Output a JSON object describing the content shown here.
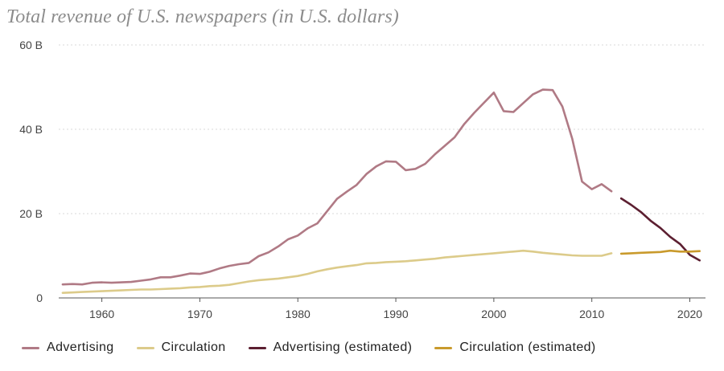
{
  "chart_data": {
    "type": "line",
    "title": "Total revenue of U.S. newspapers (in U.S. dollars)",
    "xlabel": "",
    "ylabel": "",
    "xlim": [
      1955.6,
      2021.6
    ],
    "ylim": [
      0,
      60
    ],
    "x_ticks": [
      {
        "value": 1960,
        "label": "1960"
      },
      {
        "value": 1970,
        "label": "1970"
      },
      {
        "value": 1980,
        "label": "1980"
      },
      {
        "value": 1990,
        "label": "1990"
      },
      {
        "value": 2000,
        "label": "2000"
      },
      {
        "value": 2010,
        "label": "2010"
      },
      {
        "value": 2020,
        "label": "2020"
      }
    ],
    "y_ticks": [
      {
        "value": 0,
        "label": "0"
      },
      {
        "value": 20,
        "label": "20 B"
      },
      {
        "value": 40,
        "label": "40 B"
      },
      {
        "value": 60,
        "label": "60 B"
      }
    ],
    "grid": true,
    "legend_position": "bottom",
    "series": [
      {
        "name": "Advertising",
        "color": "#b07a85",
        "x": [
          1956,
          1957,
          1958,
          1959,
          1960,
          1961,
          1962,
          1963,
          1964,
          1965,
          1966,
          1967,
          1968,
          1969,
          1970,
          1971,
          1972,
          1973,
          1974,
          1975,
          1976,
          1977,
          1978,
          1979,
          1980,
          1981,
          1982,
          1983,
          1984,
          1985,
          1986,
          1987,
          1988,
          1989,
          1990,
          1991,
          1992,
          1993,
          1994,
          1995,
          1996,
          1997,
          1998,
          1999,
          2000,
          2001,
          2002,
          2003,
          2004,
          2005,
          2006,
          2007,
          2008,
          2009,
          2010,
          2011,
          2012
        ],
        "values": [
          3.2,
          3.3,
          3.2,
          3.6,
          3.7,
          3.6,
          3.7,
          3.8,
          4.1,
          4.4,
          4.9,
          4.9,
          5.3,
          5.8,
          5.7,
          6.2,
          7.0,
          7.6,
          8.0,
          8.3,
          9.9,
          10.8,
          12.2,
          13.9,
          14.8,
          16.5,
          17.7,
          20.6,
          23.5,
          25.2,
          26.8,
          29.4,
          31.2,
          32.4,
          32.3,
          30.3,
          30.6,
          31.8,
          34.1,
          36.1,
          38.1,
          41.3,
          43.9,
          46.3,
          48.7,
          44.3,
          44.1,
          46.2,
          48.3,
          49.4,
          49.3,
          45.4,
          37.8,
          27.6,
          25.8,
          27.0,
          25.3
        ]
      },
      {
        "name": "Circulation",
        "color": "#dccb8a",
        "x": [
          1956,
          1957,
          1958,
          1959,
          1960,
          1961,
          1962,
          1963,
          1964,
          1965,
          1966,
          1967,
          1968,
          1969,
          1970,
          1971,
          1972,
          1973,
          1974,
          1975,
          1976,
          1977,
          1978,
          1979,
          1980,
          1981,
          1982,
          1983,
          1984,
          1985,
          1986,
          1987,
          1988,
          1989,
          1990,
          1991,
          1992,
          1993,
          1994,
          1995,
          1996,
          1997,
          1998,
          1999,
          2000,
          2001,
          2002,
          2003,
          2004,
          2005,
          2006,
          2007,
          2008,
          2009,
          2010,
          2011,
          2012
        ],
        "values": [
          1.2,
          1.3,
          1.4,
          1.5,
          1.6,
          1.7,
          1.8,
          1.9,
          2.0,
          2.0,
          2.1,
          2.2,
          2.3,
          2.5,
          2.6,
          2.8,
          2.9,
          3.1,
          3.5,
          3.9,
          4.2,
          4.4,
          4.6,
          4.9,
          5.2,
          5.7,
          6.3,
          6.8,
          7.2,
          7.5,
          7.8,
          8.2,
          8.3,
          8.5,
          8.6,
          8.7,
          8.9,
          9.1,
          9.3,
          9.6,
          9.8,
          10.0,
          10.2,
          10.4,
          10.6,
          10.8,
          11.0,
          11.2,
          11.0,
          10.7,
          10.5,
          10.3,
          10.1,
          10.0,
          10.0,
          10.0,
          10.6
        ]
      },
      {
        "name": "Advertising (estimated)",
        "color": "#5c1f31",
        "x": [
          2013,
          2014,
          2015,
          2016,
          2017,
          2018,
          2019,
          2020,
          2021
        ],
        "values": [
          23.6,
          22.1,
          20.4,
          18.3,
          16.6,
          14.5,
          12.8,
          10.2,
          8.9
        ]
      },
      {
        "name": "Circulation (estimated)",
        "color": "#c99a2c",
        "x": [
          2013,
          2014,
          2015,
          2016,
          2017,
          2018,
          2019,
          2020,
          2021
        ],
        "values": [
          10.5,
          10.6,
          10.7,
          10.8,
          10.9,
          11.2,
          11.0,
          11.0,
          11.1
        ]
      }
    ]
  }
}
